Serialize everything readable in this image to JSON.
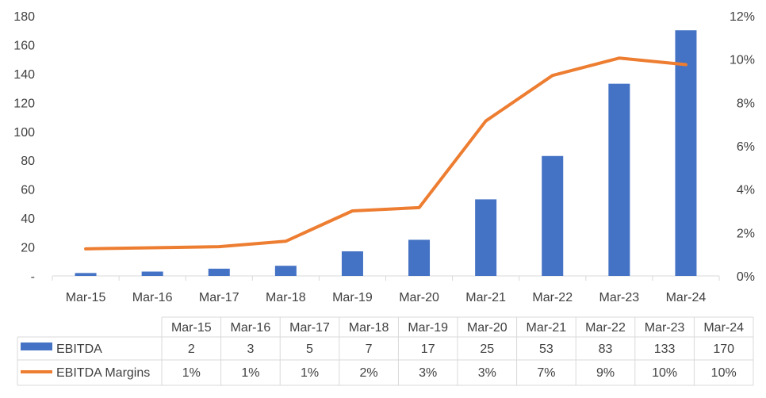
{
  "chart_data": {
    "type": "bar",
    "categories": [
      "Mar-15",
      "Mar-16",
      "Mar-17",
      "Mar-18",
      "Mar-19",
      "Mar-20",
      "Mar-21",
      "Mar-22",
      "Mar-23",
      "Mar-24"
    ],
    "series": [
      {
        "name": "EBITDA",
        "type": "bar",
        "axis": "left",
        "color": "#4472c4",
        "values": [
          2,
          3,
          5,
          7,
          17,
          25,
          53,
          83,
          133,
          170
        ],
        "labels": [
          "2",
          "3",
          "5",
          "7",
          "17",
          "25",
          "53",
          "83",
          "133",
          "170"
        ]
      },
      {
        "name": "EBITDA Margins",
        "type": "line",
        "axis": "right",
        "color": "#ed7d31",
        "values": [
          1.25,
          1.3,
          1.35,
          1.6,
          3.0,
          3.15,
          7.15,
          9.25,
          10.05,
          9.75
        ],
        "labels": [
          "1%",
          "1%",
          "1%",
          "2%",
          "3%",
          "3%",
          "7%",
          "9%",
          "10%",
          "10%"
        ]
      }
    ],
    "y_left": {
      "min": 0,
      "max": 180,
      "ticks": [
        "-",
        "20",
        "40",
        "60",
        "80",
        "100",
        "120",
        "140",
        "160",
        "180"
      ]
    },
    "y_right": {
      "min": 0,
      "max": 12,
      "ticks": [
        "0%",
        "2%",
        "4%",
        "6%",
        "8%",
        "10%",
        "12%"
      ]
    },
    "grid": false,
    "legend": "data-table below chart"
  }
}
